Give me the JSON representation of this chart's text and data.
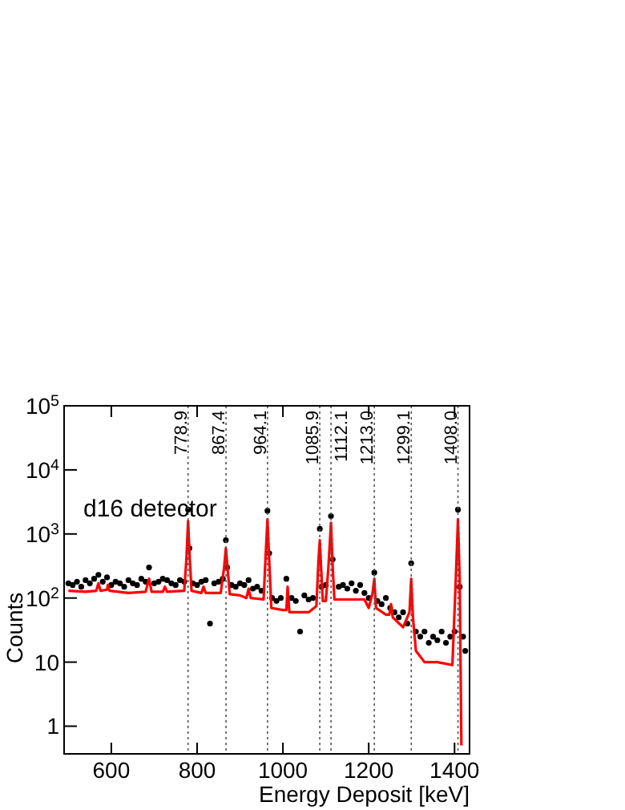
{
  "chart_data": {
    "type": "scatter",
    "xlabel": "Energy Deposit [keV]",
    "ylabel": "Counts",
    "log": "y",
    "xlim": [
      490,
      1435
    ],
    "ylim": [
      0.37,
      100000
    ],
    "xticks": [
      600,
      800,
      1000,
      1200,
      1400
    ],
    "yticks": [
      1,
      10,
      {
        "value": 100,
        "label": "10$^{2}$"
      },
      {
        "value": 1000,
        "label": "10$^{3}$"
      },
      {
        "value": 10000,
        "label": "10$^{4}$"
      },
      {
        "value": 100000,
        "label": "10$^{5}$"
      }
    ],
    "annotations": [
      "d16 detector"
    ],
    "ref_lines": [
      {
        "axis": "x",
        "value": 778.9,
        "label": "778.9",
        "color": "#555555",
        "line_style": "dotted"
      },
      {
        "axis": "x",
        "value": 867.4,
        "label": "867.4",
        "color": "#555555",
        "line_style": "dotted"
      },
      {
        "axis": "x",
        "value": 964.1,
        "label": "964.1",
        "color": "#555555",
        "line_style": "dotted"
      },
      {
        "axis": "x",
        "value": 1085.9,
        "label": "1085.9",
        "color": "#555555",
        "line_style": "dotted"
      },
      {
        "axis": "x",
        "value": 1112.1,
        "label": "1112.1",
        "color": "#555555",
        "line_style": "dotted"
      },
      {
        "axis": "x",
        "value": 1213.0,
        "label": "1213.0",
        "color": "#555555",
        "line_style": "dotted"
      },
      {
        "axis": "x",
        "value": 1299.1,
        "label": "1299.1",
        "color": "#555555",
        "line_style": "dotted"
      },
      {
        "axis": "x",
        "value": 1408.0,
        "label": "1408.0",
        "color": "#555555",
        "line_style": "dotted"
      }
    ],
    "series": [
      {
        "color": "#000000",
        "marker": "circle",
        "x": [
          500,
          510,
          520,
          530,
          540,
          550,
          560,
          570,
          580,
          590,
          600,
          610,
          620,
          630,
          640,
          650,
          660,
          670,
          680,
          688,
          700,
          710,
          720,
          730,
          740,
          750,
          760,
          770,
          779,
          782,
          790,
          800,
          810,
          820,
          830,
          840,
          850,
          860,
          867,
          870,
          880,
          890,
          900,
          910,
          920,
          930,
          940,
          950,
          964,
          968,
          975,
          985,
          995,
          1008,
          1020,
          1030,
          1040,
          1050,
          1060,
          1070,
          1086,
          1090,
          1100,
          1112,
          1116,
          1130,
          1140,
          1150,
          1160,
          1170,
          1180,
          1190,
          1200,
          1213,
          1220,
          1230,
          1240,
          1250,
          1260,
          1270,
          1280,
          1290,
          1299,
          1310,
          1320,
          1330,
          1340,
          1350,
          1360,
          1370,
          1380,
          1390,
          1400,
          1408,
          1412,
          1420,
          1425
        ],
        "values": [
          170,
          160,
          180,
          150,
          190,
          170,
          200,
          230,
          180,
          210,
          160,
          180,
          170,
          150,
          190,
          170,
          160,
          200,
          180,
          300,
          170,
          180,
          200,
          190,
          170,
          160,
          190,
          180,
          2400,
          600,
          170,
          160,
          180,
          190,
          40,
          170,
          180,
          200,
          800,
          300,
          160,
          150,
          170,
          160,
          190,
          140,
          150,
          130,
          2300,
          500,
          100,
          90,
          100,
          200,
          100,
          90,
          30,
          110,
          95,
          100,
          1200,
          150,
          160,
          1900,
          400,
          150,
          160,
          140,
          170,
          130,
          160,
          120,
          100,
          250,
          90,
          80,
          100,
          70,
          60,
          50,
          60,
          40,
          350,
          30,
          25,
          30,
          20,
          25,
          22,
          30,
          20,
          25,
          30,
          2400,
          150,
          25,
          15
        ]
      },
      {
        "type": "line",
        "color": "#ff0000",
        "line_style": "solid",
        "marker": "none",
        "x": [
          500,
          540,
          565,
          570,
          575,
          590,
          592,
          596,
          640,
          680,
          688,
          694,
          720,
          725,
          730,
          770,
          775,
          779,
          783,
          787,
          810,
          815,
          820,
          855,
          863,
          867,
          871,
          876,
          900,
          915,
          920,
          925,
          955,
          960,
          964,
          968,
          973,
          1000,
          1008,
          1011,
          1015,
          1060,
          1078,
          1083,
          1086,
          1089,
          1093,
          1100,
          1106,
          1112,
          1116,
          1120,
          1160,
          1190,
          1200,
          1209,
          1213,
          1217,
          1240,
          1248,
          1252,
          1256,
          1280,
          1295,
          1299,
          1303,
          1310,
          1330,
          1360,
          1395,
          1403,
          1408,
          1412,
          1416
        ],
        "values": [
          130,
          125,
          130,
          170,
          130,
          135,
          160,
          130,
          120,
          125,
          200,
          125,
          125,
          150,
          125,
          130,
          400,
          1600,
          400,
          130,
          120,
          150,
          120,
          120,
          300,
          600,
          300,
          115,
          110,
          100,
          140,
          100,
          95,
          500,
          1700,
          400,
          70,
          65,
          65,
          150,
          60,
          60,
          75,
          400,
          800,
          300,
          90,
          90,
          300,
          1500,
          300,
          95,
          95,
          95,
          70,
          120,
          200,
          70,
          55,
          55,
          80,
          50,
          35,
          60,
          200,
          50,
          15,
          10,
          10,
          9,
          200,
          1700,
          200,
          0.5
        ]
      }
    ]
  }
}
